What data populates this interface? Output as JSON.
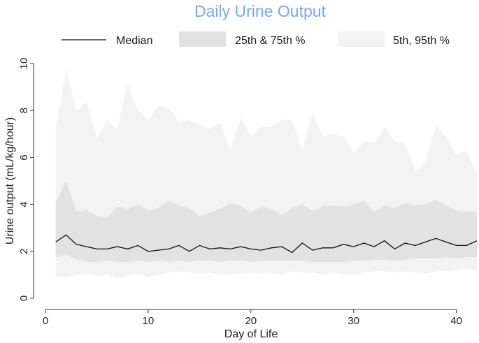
{
  "chart_data": {
    "type": "area",
    "title": "Daily Urine Output",
    "xlabel": "Day of Life",
    "ylabel": "Urine output (mL/kg/hour)",
    "xlim": [
      0,
      42
    ],
    "ylim": [
      0,
      10
    ],
    "x_ticks": [
      0,
      10,
      20,
      30,
      40
    ],
    "y_ticks": [
      0,
      2,
      4,
      6,
      8,
      10
    ],
    "grid": false,
    "legend_position": "top",
    "legend": {
      "median": "Median",
      "iqr": "25th & 75th %",
      "outer": "5th, 95th %"
    },
    "colors": {
      "title": "#7ea6e0",
      "median": "#111111",
      "iqr_band": "#e2e2e2",
      "outer_band": "#f3f3f3"
    },
    "x": [
      1,
      2,
      3,
      4,
      5,
      6,
      7,
      8,
      9,
      10,
      11,
      12,
      13,
      14,
      15,
      16,
      17,
      18,
      19,
      20,
      21,
      22,
      23,
      24,
      25,
      26,
      27,
      28,
      29,
      30,
      31,
      32,
      33,
      34,
      35,
      36,
      37,
      38,
      39,
      40,
      41,
      42
    ],
    "series": [
      {
        "name": "Median",
        "role": "median",
        "values": [
          2.4,
          2.7,
          2.3,
          2.2,
          2.1,
          2.1,
          2.2,
          2.1,
          2.25,
          2.0,
          2.05,
          2.1,
          2.25,
          2.0,
          2.25,
          2.1,
          2.15,
          2.1,
          2.2,
          2.1,
          2.05,
          2.15,
          2.2,
          1.95,
          2.35,
          2.05,
          2.15,
          2.15,
          2.3,
          2.2,
          2.35,
          2.2,
          2.45,
          2.1,
          2.35,
          2.25,
          2.4,
          2.55,
          2.4,
          2.25,
          2.25,
          2.45
        ]
      },
      {
        "name": "25th %",
        "role": "p25",
        "values": [
          1.75,
          1.85,
          1.65,
          1.55,
          1.55,
          1.6,
          1.55,
          1.55,
          1.6,
          1.55,
          1.6,
          1.55,
          1.6,
          1.55,
          1.6,
          1.6,
          1.55,
          1.6,
          1.6,
          1.55,
          1.6,
          1.6,
          1.6,
          1.6,
          1.6,
          1.55,
          1.55,
          1.55,
          1.55,
          1.6,
          1.6,
          1.65,
          1.65,
          1.6,
          1.65,
          1.7,
          1.7,
          1.7,
          1.75,
          1.7,
          1.75,
          1.75
        ]
      },
      {
        "name": "75th %",
        "role": "p75",
        "values": [
          4.1,
          5.0,
          3.7,
          3.75,
          3.5,
          3.45,
          3.9,
          3.8,
          4.0,
          3.75,
          3.85,
          4.15,
          3.95,
          3.85,
          3.5,
          3.65,
          3.8,
          4.05,
          3.95,
          3.65,
          3.9,
          3.8,
          3.55,
          3.85,
          4.0,
          3.7,
          3.95,
          3.95,
          3.9,
          4.0,
          4.15,
          3.7,
          3.95,
          3.85,
          4.05,
          3.95,
          4.0,
          4.2,
          3.95,
          3.75,
          3.7,
          3.7
        ]
      },
      {
        "name": "5th %",
        "role": "p5",
        "values": [
          0.9,
          0.9,
          1.0,
          1.05,
          0.95,
          1.0,
          0.85,
          0.95,
          1.05,
          0.9,
          1.0,
          1.1,
          1.15,
          1.1,
          1.05,
          1.1,
          1.0,
          1.0,
          1.05,
          1.1,
          1.05,
          1.1,
          1.0,
          1.15,
          1.1,
          1.1,
          1.0,
          1.1,
          1.0,
          1.0,
          1.1,
          1.15,
          1.15,
          1.1,
          1.15,
          1.1,
          1.05,
          1.15,
          1.15,
          1.2,
          1.25,
          1.15
        ]
      },
      {
        "name": "95th %",
        "role": "p95",
        "values": [
          7.2,
          9.8,
          8.0,
          8.4,
          6.8,
          7.6,
          7.2,
          9.2,
          8.0,
          7.6,
          8.2,
          8.1,
          7.5,
          7.6,
          7.4,
          7.2,
          7.5,
          6.3,
          7.7,
          6.9,
          7.3,
          7.3,
          7.6,
          7.6,
          6.3,
          7.9,
          6.9,
          7.0,
          6.9,
          6.2,
          6.7,
          6.6,
          7.3,
          6.7,
          6.6,
          5.4,
          5.8,
          7.4,
          6.9,
          6.1,
          6.3,
          5.3
        ]
      }
    ]
  }
}
